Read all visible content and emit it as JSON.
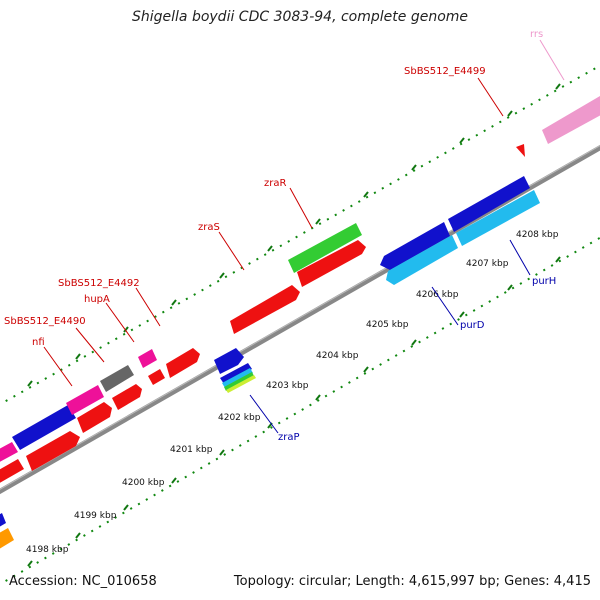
{
  "title": "Shigella boydii CDC 3083-94, complete genome",
  "footer": {
    "accession": "Accession: NC_010658",
    "topology": "Topology: circular; Length: 4,615,997 bp; Genes: 4,415"
  },
  "scale_labels": [
    "4198 kbp",
    "4199 kbp",
    "4200 kbp",
    "4201 kbp",
    "4202 kbp",
    "4203 kbp",
    "4204 kbp",
    "4205 kbp",
    "4206 kbp",
    "4207 kbp",
    "4208 kbp"
  ],
  "gene_labels": {
    "rrs": "rrs",
    "sbbs4499": "SbBS512_E4499",
    "zraR": "zraR",
    "zraS": "zraS",
    "sbbs4492": "SbBS512_E4492",
    "hupA": "hupA",
    "sbbs4490": "SbBS512_E4490",
    "nfi": "nfi",
    "zraP": "zraP",
    "purD": "purD",
    "purH": "purH"
  },
  "colors": {
    "red": "#ee1111",
    "blue": "#1111cc",
    "cyan": "#22bbee",
    "green": "#33cc33",
    "magenta": "#ee1199",
    "pink": "#ee99cc",
    "gray": "#666666",
    "orange": "#ff9900",
    "label_red": "#cc0000",
    "label_blue": "#0000aa",
    "tick_green": "#117711"
  }
}
